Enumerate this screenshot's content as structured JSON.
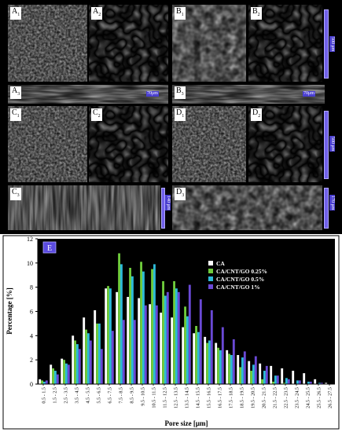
{
  "panels": {
    "A1": "A",
    "A1_sub": "1",
    "A2": "A",
    "A2_sub": "2",
    "A3": "A",
    "A3_sub": "3",
    "B1": "B",
    "B1_sub": "1",
    "B2": "B",
    "B2_sub": "2",
    "B3": "B",
    "B3_sub": "3",
    "C1": "C",
    "C1_sub": "1",
    "C2": "C",
    "C2_sub": "2",
    "C3": "C",
    "C3_sub": "3",
    "D1": "D",
    "D1_sub": "1",
    "D2": "D",
    "D2_sub": "2",
    "D3": "D",
    "D3_sub": "3",
    "E": "E"
  },
  "scale_labels": {
    "top_right": "500 μm",
    "a3": "70μm",
    "b3": "70μm",
    "mid_right": "500 μm",
    "c3": "140 μm",
    "d3": "170 μm"
  },
  "chart_data": {
    "type": "bar",
    "xlabel": "Pore size [μm]",
    "ylabel": "Percentage [%]",
    "ylim": [
      0,
      12
    ],
    "yticks": [
      0,
      2,
      4,
      6,
      8,
      10,
      12
    ],
    "grid": false,
    "legend_position": "top-right",
    "categories": [
      "0.5 - 1.5",
      "1.5 - 2.5",
      "2.5 - 3.5",
      "3.5 - 4.5",
      "4.5 - 5.5",
      "5.5 - 6.5",
      "6.5 - 7.5",
      "7.5 - 8.5",
      "8.5 - 9.5",
      "9.5 - 10.5",
      "10.5 - 11.5",
      "11.5 - 12.5",
      "12.5 - 13.5",
      "13.5 - 14.5",
      "14.5 - 15.5",
      "15.5 - 16.5",
      "16.5 - 17.5",
      "17.5 - 18.5",
      "18.5 - 19.5",
      "19.5 - 20.5",
      "20.5 - 21.5",
      "21.5 - 22.5",
      "22.5 - 23.5",
      "23.5 - 24.5",
      "24.5 - 25.5",
      "25.5 - 26.5",
      "26.5 - 27.5"
    ],
    "series": [
      {
        "name": "CA",
        "color": "#ffffff",
        "values": [
          0.4,
          1.6,
          2.1,
          4.0,
          5.5,
          6.1,
          7.9,
          7.6,
          7.2,
          7.1,
          6.6,
          5.9,
          5.5,
          4.7,
          4.2,
          3.9,
          3.4,
          2.8,
          2.4,
          1.9,
          1.7,
          1.5,
          1.3,
          1.1,
          0.9,
          0.4,
          0.1
        ]
      },
      {
        "name": "CA/CNT/GO 0.25%",
        "color": "#6ecb3c",
        "values": [
          0.3,
          1.3,
          2.0,
          3.6,
          4.5,
          5.0,
          8.1,
          10.8,
          9.6,
          10.1,
          9.5,
          8.5,
          8.5,
          6.4,
          4.8,
          3.4,
          3.0,
          2.5,
          1.4,
          1.1,
          0.4,
          0.2,
          0.1,
          0.0,
          0.0,
          0.0,
          0.0
        ]
      },
      {
        "name": "CA/CNT/GO 0.5%",
        "color": "#2dbbd8",
        "values": [
          0.2,
          1.1,
          1.7,
          3.3,
          4.2,
          5.0,
          7.9,
          9.9,
          8.9,
          9.3,
          9.9,
          7.3,
          7.9,
          5.6,
          4.3,
          3.6,
          2.8,
          2.4,
          2.2,
          1.6,
          1.1,
          0.7,
          0.5,
          0.3,
          0.2,
          0.1,
          0.0
        ]
      },
      {
        "name": "CA/CNT/GO 1%",
        "color": "#6a49d6",
        "values": [
          0.3,
          0.8,
          1.6,
          2.9,
          3.6,
          2.9,
          4.4,
          5.3,
          5.3,
          6.5,
          6.5,
          7.6,
          7.6,
          8.2,
          7.0,
          6.1,
          4.7,
          3.7,
          2.7,
          2.3,
          1.5,
          0.7,
          0.4,
          0.3,
          0.2,
          0.1,
          0.0
        ]
      }
    ]
  }
}
